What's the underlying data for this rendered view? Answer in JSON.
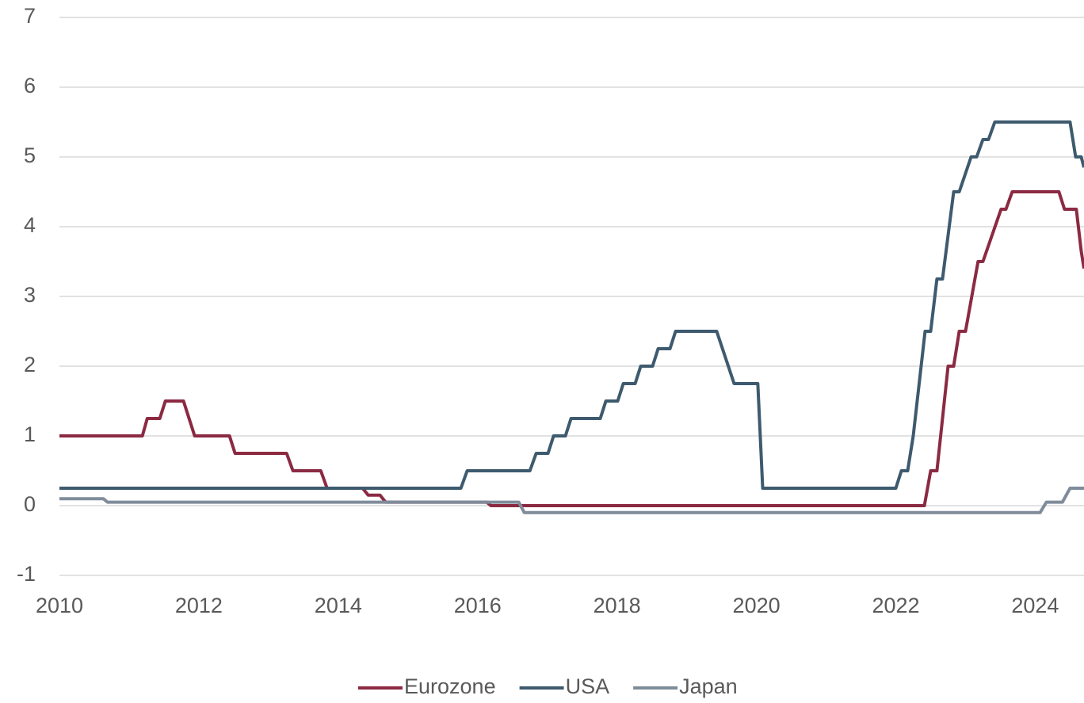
{
  "chart_data": {
    "type": "line",
    "xlim": [
      2010,
      2024.7
    ],
    "xticks": [
      2010,
      2012,
      2014,
      2016,
      2018,
      2020,
      2022,
      2024
    ],
    "ylim": [
      -1,
      7
    ],
    "yticks": [
      -1,
      0,
      1,
      2,
      3,
      4,
      5,
      6,
      7
    ],
    "grid": true,
    "legend": "bottom",
    "series": [
      {
        "name": "Eurozone",
        "color": "#8b2a42",
        "x": [
          2010,
          2011.19,
          2011.26,
          2011.44,
          2011.52,
          2011.78,
          2011.94,
          2012.44,
          2012.52,
          2013.26,
          2013.35,
          2013.75,
          2013.84,
          2014.35,
          2014.43,
          2014.6,
          2014.68,
          2016.13,
          2016.19,
          2022.41,
          2022.5,
          2022.59,
          2022.75,
          2022.83,
          2022.91,
          2023.0,
          2023.18,
          2023.25,
          2023.51,
          2023.58,
          2023.67,
          2024.34,
          2024.42,
          2024.59,
          2024.66,
          2024.7
        ],
        "values": [
          1,
          1,
          1.25,
          1.25,
          1.5,
          1.5,
          1,
          1,
          0.75,
          0.75,
          0.5,
          0.5,
          0.25,
          0.25,
          0.15,
          0.15,
          0.05,
          0.05,
          0,
          0,
          0.5,
          0.5,
          2,
          2,
          2.5,
          2.5,
          3.5,
          3.5,
          4.25,
          4.25,
          4.5,
          4.5,
          4.25,
          4.25,
          3.65,
          3.4
        ]
      },
      {
        "name": "USA",
        "color": "#3e5a6e",
        "x": [
          2010,
          2015.76,
          2015.85,
          2016.75,
          2016.84,
          2017.01,
          2017.09,
          2017.26,
          2017.34,
          2017.76,
          2017.84,
          2018.01,
          2018.09,
          2018.26,
          2018.34,
          2018.51,
          2018.59,
          2018.76,
          2018.84,
          2019.43,
          2019.68,
          2020.02,
          2020.09,
          2022.0,
          2022.08,
          2022.17,
          2022.25,
          2022.42,
          2022.5,
          2022.59,
          2022.67,
          2022.83,
          2022.91,
          2023.08,
          2023.16,
          2023.25,
          2023.33,
          2023.42,
          2024.5,
          2024.58,
          2024.66,
          2024.7
        ],
        "values": [
          0.25,
          0.25,
          0.5,
          0.5,
          0.75,
          0.75,
          1,
          1,
          1.25,
          1.25,
          1.5,
          1.5,
          1.75,
          1.75,
          2,
          2,
          2.25,
          2.25,
          2.5,
          2.5,
          1.75,
          1.75,
          0.25,
          0.25,
          0.5,
          0.5,
          1,
          2.5,
          2.5,
          3.25,
          3.25,
          4.5,
          4.5,
          5,
          5,
          5.25,
          5.25,
          5.5,
          5.5,
          5,
          5,
          4.85
        ]
      },
      {
        "name": "Japan",
        "color": "#7f8c9a",
        "x": [
          2010,
          2010.63,
          2010.69,
          2016.59,
          2016.67,
          2024.07,
          2024.16,
          2024.39,
          2024.5,
          2024.7
        ],
        "values": [
          0.1,
          0.1,
          0.05,
          0.05,
          -0.1,
          -0.1,
          0.05,
          0.05,
          0.25,
          0.25
        ]
      }
    ]
  }
}
